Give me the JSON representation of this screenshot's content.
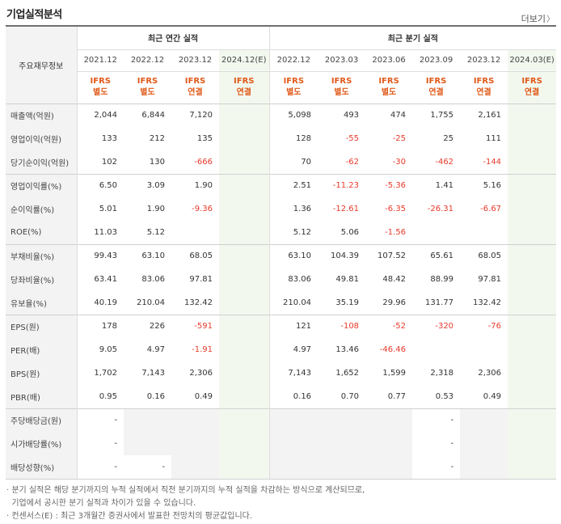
{
  "header": {
    "title": "기업실적분석",
    "more_label": "더보기",
    "more_arrow": "〉"
  },
  "table": {
    "label_header": "주요재무정보",
    "group_annual": "최근 연간 실적",
    "group_quarter": "최근 분기 실적",
    "periods": [
      "2021.12",
      "2022.12",
      "2023.12",
      "2024.12(E)",
      "2022.12",
      "2023.03",
      "2023.06",
      "2023.09",
      "2023.12",
      "2024.03(E)"
    ],
    "ifrs": [
      [
        "IFRS",
        "별도"
      ],
      [
        "IFRS",
        "별도"
      ],
      [
        "IFRS",
        "연결"
      ],
      [
        "IFRS",
        "연결"
      ],
      [
        "IFRS",
        "별도"
      ],
      [
        "IFRS",
        "별도"
      ],
      [
        "IFRS",
        "별도"
      ],
      [
        "IFRS",
        "연결"
      ],
      [
        "IFRS",
        "연결"
      ],
      [
        "IFRS",
        "연결"
      ]
    ],
    "rows": [
      {
        "label": "매출액(억원)",
        "values": [
          "2,044",
          "6,844",
          "7,120",
          "",
          "5,098",
          "493",
          "474",
          "1,755",
          "2,161",
          ""
        ]
      },
      {
        "label": "영업이익(억원)",
        "values": [
          "133",
          "212",
          "135",
          "",
          "128",
          "-55",
          "-25",
          "25",
          "111",
          ""
        ]
      },
      {
        "label": "당기순이익(억원)",
        "values": [
          "102",
          "130",
          "-666",
          "",
          "70",
          "-62",
          "-30",
          "-462",
          "-144",
          ""
        ]
      },
      {
        "label": "영업이익률(%)",
        "values": [
          "6.50",
          "3.09",
          "1.90",
          "",
          "2.51",
          "-11.23",
          "-5.36",
          "1.41",
          "5.16",
          ""
        ]
      },
      {
        "label": "순이익률(%)",
        "values": [
          "5.01",
          "1.90",
          "-9.36",
          "",
          "1.36",
          "-12.61",
          "-6.35",
          "-26.31",
          "-6.67",
          ""
        ]
      },
      {
        "label": "ROE(%)",
        "values": [
          "11.03",
          "5.12",
          "",
          "",
          "5.12",
          "5.06",
          "-1.56",
          "",
          "",
          ""
        ]
      },
      {
        "label": "부채비율(%)",
        "values": [
          "99.43",
          "63.10",
          "68.05",
          "",
          "63.10",
          "104.39",
          "107.52",
          "65.61",
          "68.05",
          ""
        ]
      },
      {
        "label": "당좌비율(%)",
        "values": [
          "63.41",
          "83.06",
          "97.81",
          "",
          "83.06",
          "49.81",
          "48.42",
          "88.99",
          "97.81",
          ""
        ]
      },
      {
        "label": "유보율(%)",
        "values": [
          "40.19",
          "210.04",
          "132.42",
          "",
          "210.04",
          "35.19",
          "29.96",
          "131.77",
          "132.42",
          ""
        ]
      },
      {
        "label": "EPS(원)",
        "values": [
          "178",
          "226",
          "-591",
          "",
          "121",
          "-108",
          "-52",
          "-320",
          "-76",
          ""
        ]
      },
      {
        "label": "PER(배)",
        "values": [
          "9.05",
          "4.97",
          "-1.91",
          "",
          "4.97",
          "13.46",
          "-46.46",
          "",
          "",
          ""
        ]
      },
      {
        "label": "BPS(원)",
        "values": [
          "1,702",
          "7,143",
          "2,306",
          "",
          "7,143",
          "1,652",
          "1,599",
          "2,318",
          "2,306",
          ""
        ]
      },
      {
        "label": "PBR(배)",
        "values": [
          "0.95",
          "0.16",
          "0.49",
          "",
          "0.16",
          "0.70",
          "0.77",
          "0.53",
          "0.49",
          ""
        ]
      },
      {
        "label": "주당배당금(원)",
        "values": [
          "-",
          "",
          "",
          "",
          "",
          "",
          "",
          "-",
          "",
          ""
        ]
      },
      {
        "label": "시가배당률(%)",
        "values": [
          "-",
          "",
          "",
          "",
          "",
          "",
          "",
          "-",
          "",
          ""
        ]
      },
      {
        "label": "배당성향(%)",
        "values": [
          "-",
          "-",
          "",
          "",
          "",
          "",
          "",
          "-",
          "",
          ""
        ]
      }
    ]
  },
  "notes": {
    "line1": "· 분기 실적은 해당 분기까지의 누적 실적에서 직전 분기까지의 누적 실적을 차감하는 방식으로 계산되므로,",
    "line2": "  기업에서 공시한 분기 실적과 차이가 있을 수 있습니다.",
    "line3": "· 컨센서스(E) : 최근 3개월간 증권사에서 발표한 전망치의 평균값입니다."
  }
}
